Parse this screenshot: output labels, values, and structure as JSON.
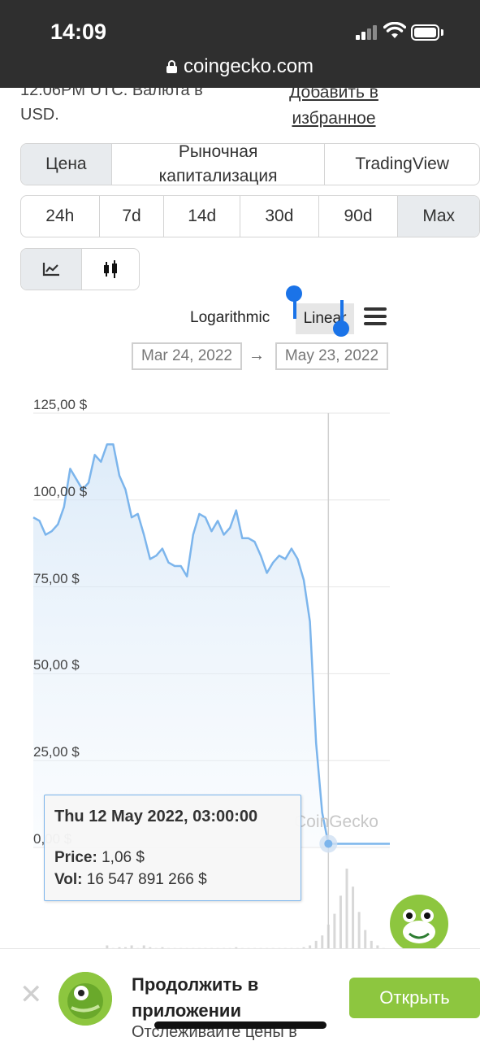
{
  "status_bar": {
    "time": "14:09"
  },
  "browser": {
    "url": "coingecko.com"
  },
  "page": {
    "truncated_text_line1": "12:06PM UTC. Валюта в",
    "truncated_text_line2": "USD.",
    "favorite_line1": "Добавить в",
    "favorite_line2": "избранное"
  },
  "chart_tabs": [
    {
      "label": "Цена",
      "active": true
    },
    {
      "label": "Рыночная капитализация",
      "active": false
    },
    {
      "label": "TradingView",
      "active": false
    }
  ],
  "ranges": [
    {
      "label": "24h",
      "active": false
    },
    {
      "label": "7d",
      "active": false
    },
    {
      "label": "14d",
      "active": false
    },
    {
      "label": "30d",
      "active": false
    },
    {
      "label": "90d",
      "active": false
    },
    {
      "label": "Max",
      "active": true
    }
  ],
  "chart_type_icons": [
    "line-chart-icon",
    "candlestick-icon"
  ],
  "scale": {
    "logarithmic": "Logarithmic",
    "linear": "Linear",
    "selected": "Linear"
  },
  "date_range": {
    "from": "Mar 24, 2022",
    "arrow": "→",
    "to": "May 23, 2022"
  },
  "chart_data": {
    "type": "area",
    "ylim": [
      0,
      125
    ],
    "y_ticks": [
      "125,00 $",
      "100,00 $",
      "75,00 $",
      "50,00 $",
      "25,00 $",
      "0,00 $"
    ],
    "y_tick_values": [
      125,
      100,
      75,
      50,
      25,
      0
    ],
    "series": [
      {
        "values": [
          95,
          94,
          90,
          91,
          93,
          98,
          109,
          106,
          103,
          105,
          113,
          111,
          116,
          116,
          107,
          103,
          95,
          96,
          90,
          83,
          84,
          86,
          82,
          81,
          81,
          78,
          90,
          96,
          95,
          91,
          94,
          90,
          92,
          97,
          89,
          89,
          88,
          84,
          79,
          82,
          84,
          83,
          86,
          83,
          77,
          65,
          30,
          10,
          1.06,
          1.06,
          1.06,
          1.06,
          1.06,
          1.06,
          1.06,
          1.06,
          1.06,
          1.06,
          1.06
        ]
      }
    ],
    "volume": [
      0,
      0,
      0,
      0,
      0,
      0,
      0,
      0,
      0,
      0,
      0,
      0,
      5,
      2,
      3,
      3,
      5,
      2,
      5,
      3,
      2,
      3,
      2,
      2,
      2,
      2,
      2,
      2,
      2,
      2,
      2,
      2,
      2,
      3,
      2,
      2,
      2,
      2,
      2,
      2,
      2,
      2,
      2,
      2,
      3,
      5,
      10,
      16,
      28,
      40,
      60,
      90,
      70,
      42,
      22,
      10,
      5,
      2,
      0
    ],
    "color": "#7cb5ec",
    "watermark": "CoinGecko",
    "tooltip": {
      "date": "Thu 12 May 2022, 03:00:00",
      "price_label": "Price:",
      "price_value": "1,06 $",
      "vol_label": "Vol:",
      "vol_value": "16 547 891 266 $"
    }
  },
  "banner": {
    "close": "✕",
    "title": "Продолжить в приложении",
    "subtitle": "Отслеживайте цены в",
    "open_button": "Открыть"
  }
}
